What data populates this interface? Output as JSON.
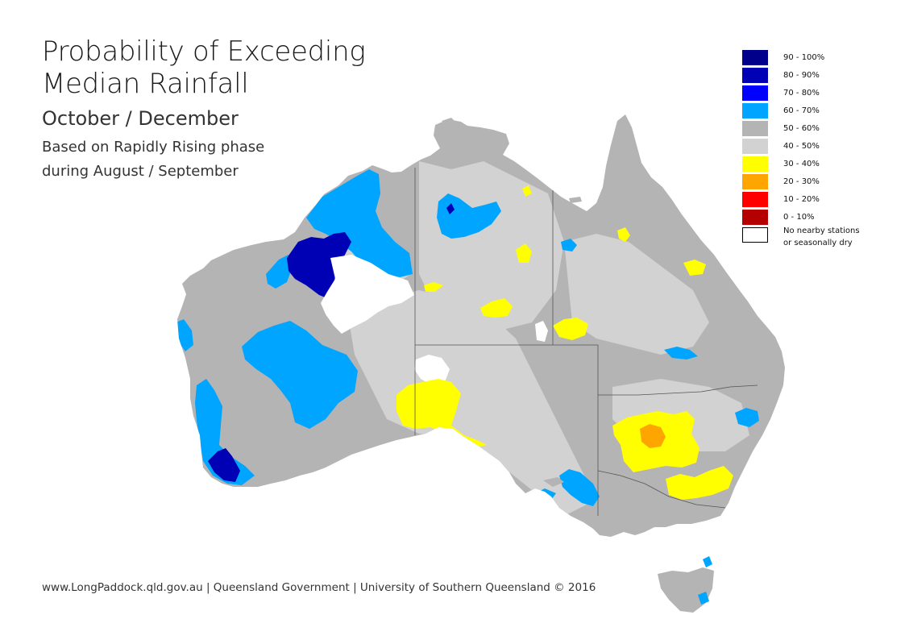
{
  "header": {
    "title_line1": "Probability of Exceeding",
    "title_line2": "Median Rainfall",
    "subtitle": "October / December",
    "note_line1": "Based on Rapidly Rising phase",
    "note_line2": "during August / September"
  },
  "legend": {
    "items": [
      {
        "label": "90 - 100%",
        "color": "#00008b"
      },
      {
        "label": "80 - 90%",
        "color": "#0000b4"
      },
      {
        "label": "70 - 80%",
        "color": "#0000ff"
      },
      {
        "label": "60 - 70%",
        "color": "#00a5ff"
      },
      {
        "label": "50 - 60%",
        "color": "#b4b4b4"
      },
      {
        "label": "40 - 50%",
        "color": "#d2d2d2"
      },
      {
        "label": "30 - 40%",
        "color": "#ffff00"
      },
      {
        "label": "20 - 30%",
        "color": "#ffa500"
      },
      {
        "label": "10 - 20%",
        "color": "#ff0000"
      },
      {
        "label": "0 - 10%",
        "color": "#b40000"
      }
    ],
    "no_data_line1": "No nearby stations",
    "no_data_line2": "or seasonally dry",
    "no_data_color": "#ffffff"
  },
  "map_colors": {
    "base": "#b4b4b4",
    "light": "#d2d2d2",
    "above60": "#00a5ff",
    "above70": "#0000ff",
    "above80": "#0000b4",
    "below40": "#ffff00",
    "below30": "#ffa500",
    "nodata": "#ffffff",
    "border": "#555555"
  },
  "footer": {
    "text": "www.LongPaddock.qld.gov.au | Queensland Government | University of Southern Queensland © 2016"
  }
}
